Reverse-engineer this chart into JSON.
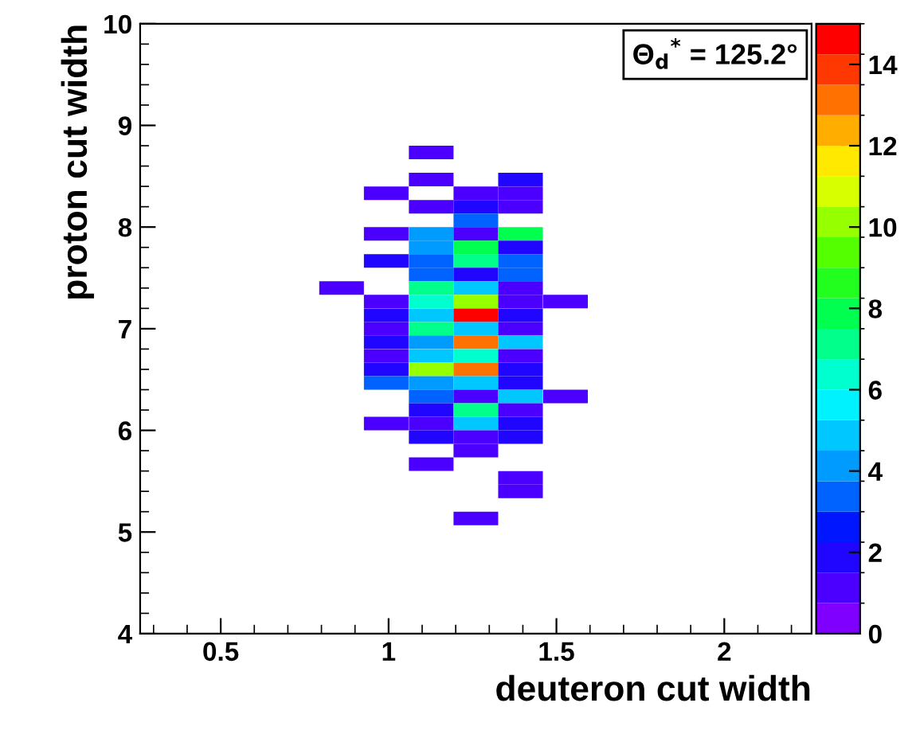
{
  "chart_data": {
    "type": "heatmap",
    "xlabel": "deuteron cut width",
    "ylabel": "proton cut width",
    "annotations": [
      "Θ$_{d}$$^{*}$ = 125.2°"
    ],
    "x": [
      0.86,
      0.993,
      1.127,
      1.26,
      1.393,
      1.527
    ],
    "y": [
      8.733,
      8.467,
      8.333,
      8.2,
      8.067,
      7.933,
      7.8,
      7.667,
      7.533,
      7.4,
      7.267,
      7.133,
      7.0,
      6.867,
      6.733,
      6.6,
      6.467,
      6.333,
      6.2,
      6.067,
      5.933,
      5.8,
      5.667,
      5.533,
      5.4,
      5.133
    ],
    "cells": [
      [
        null,
        null,
        1,
        null,
        null,
        null
      ],
      [
        null,
        null,
        1,
        null,
        2,
        null
      ],
      [
        null,
        1,
        null,
        1,
        1,
        null
      ],
      [
        null,
        null,
        1,
        2,
        1,
        null
      ],
      [
        null,
        null,
        null,
        3,
        null,
        null
      ],
      [
        null,
        1,
        4,
        1,
        8,
        null
      ],
      [
        null,
        null,
        4,
        8,
        2,
        null
      ],
      [
        null,
        2,
        3,
        7,
        3,
        null
      ],
      [
        null,
        null,
        3,
        2,
        3,
        null
      ],
      [
        1,
        null,
        7,
        5,
        1,
        null
      ],
      [
        null,
        1,
        6,
        10,
        1,
        1
      ],
      [
        null,
        2,
        5,
        15,
        2,
        null
      ],
      [
        null,
        1,
        7,
        5,
        1,
        null
      ],
      [
        null,
        2,
        4,
        13,
        5,
        null
      ],
      [
        null,
        1,
        5,
        6,
        1,
        null
      ],
      [
        null,
        2,
        10,
        13,
        2,
        null
      ],
      [
        null,
        3,
        4,
        5,
        2,
        null
      ],
      [
        null,
        null,
        3,
        1,
        5,
        1
      ],
      [
        null,
        null,
        2,
        7,
        1,
        null
      ],
      [
        null,
        1,
        1,
        5,
        2,
        null
      ],
      [
        null,
        null,
        2,
        1,
        2,
        null
      ],
      [
        null,
        null,
        null,
        1,
        null,
        null
      ],
      [
        null,
        null,
        1,
        null,
        null,
        null
      ],
      [
        null,
        null,
        null,
        null,
        1,
        null
      ],
      [
        null,
        null,
        null,
        null,
        1,
        null
      ],
      [
        null,
        null,
        null,
        1,
        null,
        null
      ]
    ],
    "xlim": [
      0.26,
      2.26
    ],
    "xticks": [
      0.5,
      1,
      1.5,
      2
    ],
    "ylim": [
      4,
      10
    ],
    "yticks": [
      4,
      5,
      6,
      7,
      8,
      9,
      10
    ],
    "clim": [
      0,
      15
    ],
    "cticks": [
      0,
      2,
      4,
      6,
      8,
      10,
      12,
      14
    ],
    "grid": false
  }
}
